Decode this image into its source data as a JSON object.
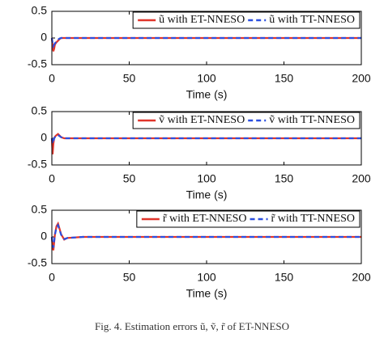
{
  "chart_data": [
    {
      "type": "line",
      "xlabel": "Time (s)",
      "x": [
        0,
        0.5,
        1,
        1.5,
        2,
        3,
        4,
        5,
        6,
        8,
        10,
        20,
        50,
        100,
        150,
        200
      ],
      "series": [
        {
          "name": "ũ with ET-NNESO",
          "color": "#e0352b",
          "dash": false,
          "values": [
            0,
            -0.15,
            -0.25,
            -0.2,
            -0.12,
            -0.08,
            -0.05,
            -0.02,
            0,
            0,
            0,
            0,
            0,
            0,
            0,
            0
          ]
        },
        {
          "name": "ũ with TT-NNESO",
          "color": "#2b4fe0",
          "dash": true,
          "values": [
            0,
            -0.1,
            -0.15,
            -0.12,
            -0.1,
            -0.06,
            -0.03,
            -0.01,
            0,
            0,
            0,
            0,
            0,
            0,
            0,
            0
          ]
        }
      ],
      "xlim": [
        0,
        200
      ],
      "xticks": [
        0,
        50,
        100,
        150,
        200
      ],
      "ylim": [
        -0.5,
        0.5
      ],
      "yticks": [
        -0.5,
        0,
        0.5
      ],
      "legend": "upper right"
    },
    {
      "type": "line",
      "xlabel": "Time (s)",
      "x": [
        0,
        0.5,
        1,
        1.5,
        2,
        3,
        4,
        5,
        6,
        8,
        10,
        20,
        50,
        100,
        150,
        200
      ],
      "series": [
        {
          "name": "ṽ with ET-NNESO",
          "color": "#e0352b",
          "dash": false,
          "values": [
            0,
            -0.3,
            -0.1,
            0,
            0.03,
            0.06,
            0.08,
            0.05,
            0.02,
            0,
            0,
            0,
            0,
            0,
            0,
            0
          ]
        },
        {
          "name": "ṽ with TT-NNESO",
          "color": "#2b4fe0",
          "dash": true,
          "values": [
            0,
            -0.1,
            -0.05,
            0,
            0.02,
            0.05,
            0.06,
            0.04,
            0.02,
            0,
            0,
            0,
            0,
            0,
            0,
            0
          ]
        }
      ],
      "xlim": [
        0,
        200
      ],
      "xticks": [
        0,
        50,
        100,
        150,
        200
      ],
      "ylim": [
        -0.5,
        0.5
      ],
      "yticks": [
        -0.5,
        0,
        0.5
      ],
      "legend": "upper right"
    },
    {
      "type": "line",
      "xlabel": "Time (s)",
      "x": [
        0,
        0.5,
        1,
        1.5,
        2,
        3,
        4,
        5,
        6,
        8,
        10,
        20,
        50,
        100,
        150,
        200
      ],
      "series": [
        {
          "name": "r̃ with ET-NNESO",
          "color": "#e0352b",
          "dash": false,
          "values": [
            0,
            -0.2,
            -0.25,
            -0.1,
            0.05,
            0.2,
            0.25,
            0.15,
            0.05,
            -0.05,
            -0.02,
            0,
            0,
            0,
            0,
            0
          ]
        },
        {
          "name": "r̃ with TT-NNESO",
          "color": "#2b4fe0",
          "dash": true,
          "values": [
            0,
            -0.15,
            -0.2,
            -0.08,
            0.04,
            0.18,
            0.22,
            0.13,
            0.04,
            -0.04,
            -0.02,
            0,
            0,
            0,
            0,
            0
          ]
        }
      ],
      "xlim": [
        0,
        200
      ],
      "xticks": [
        0,
        50,
        100,
        150,
        200
      ],
      "ylim": [
        -0.5,
        0.5
      ],
      "yticks": [
        -0.5,
        0,
        0.5
      ],
      "legend": "upper right"
    }
  ],
  "caption": "Fig. 4. Estimation errors ũ, ṽ, r̃ of ET-NNESO"
}
